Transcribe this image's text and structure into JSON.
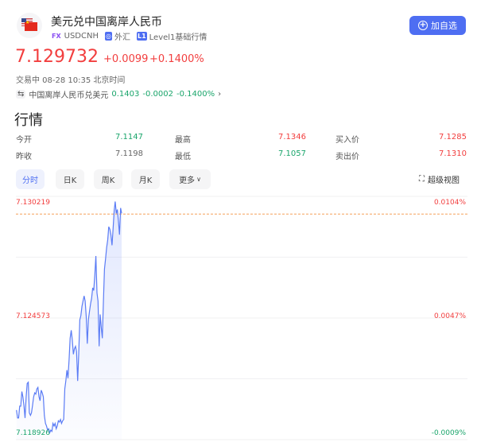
{
  "header": {
    "title": "美元兑中国离岸人民币",
    "symbol_badge": "FX",
    "symbol": "USDCNH",
    "market_icon": "globe-icon",
    "market": "外汇",
    "level_badge": "L1",
    "level": "Level1基础行情",
    "add_button": "加自选",
    "add_icon": "plus-circle-icon"
  },
  "quote": {
    "price": "7.129732",
    "change": "+0.0099",
    "change_pct": "+0.1400%",
    "status": "交易中 08-28 10:35 北京时间",
    "inverse_label": "中国离岸人民币兑美元",
    "inverse_price": "0.1403",
    "inverse_change": "-0.0002",
    "inverse_pct": "-0.1400%"
  },
  "market": {
    "heading": "行情",
    "rows": [
      [
        {
          "label": "今开",
          "value": "7.1147",
          "color": "green"
        },
        {
          "label": "最高",
          "value": "7.1346",
          "color": "red"
        },
        {
          "label": "买入价",
          "value": "7.1285",
          "color": "red"
        }
      ],
      [
        {
          "label": "昨收",
          "value": "7.1198",
          "color": "gray"
        },
        {
          "label": "最低",
          "value": "7.1057",
          "color": "green"
        },
        {
          "label": "卖出价",
          "value": "7.1310",
          "color": "red"
        }
      ]
    ]
  },
  "tabs": [
    {
      "label": "分时",
      "active": true
    },
    {
      "label": "日K"
    },
    {
      "label": "周K"
    },
    {
      "label": "月K"
    },
    {
      "label": "更多"
    }
  ],
  "super_view": "超级视图",
  "colors": {
    "up": "#f23e3e",
    "down": "#1aa56b",
    "accent": "#4e6ef2",
    "line": "#5b7cf5",
    "ref_line": "#f5a05a"
  },
  "chart_data": {
    "type": "line",
    "ylim": [
      7.118926,
      7.130219
    ],
    "y_ticks": [
      "7.130219",
      "7.124573",
      "7.118926"
    ],
    "pct_ticks": [
      "0.0104%",
      "0.0047%",
      "-0.0009%"
    ],
    "reference_line": 7.1294,
    "grid": true,
    "session_fraction_shown": 0.233,
    "values": [
      7.1203,
      7.11993,
      7.11993,
      7.12048,
      7.12048,
      7.12116,
      7.12091,
      7.12048,
      7.11993,
      7.12091,
      7.12153,
      7.12159,
      7.12017,
      7.12005,
      7.12017,
      7.12054,
      7.12091,
      7.1211,
      7.12104,
      7.12128,
      7.12135,
      7.12091,
      7.12073,
      7.12122,
      7.1211,
      7.12091,
      7.12005,
      7.11968,
      7.11956,
      7.11937,
      7.11943,
      7.11925,
      7.11937,
      7.11931,
      7.11968,
      7.11956,
      7.11968,
      7.11943,
      7.11956,
      7.1198,
      7.11974,
      7.11986,
      7.11968,
      7.1198,
      7.11986,
      7.12128,
      7.12165,
      7.12215,
      7.12178,
      7.12264,
      7.12363,
      7.124,
      7.12357,
      7.12289,
      7.12314,
      7.12326,
      7.12301,
      7.12165,
      7.12289,
      7.12449,
      7.12468,
      7.12511,
      7.12536,
      7.1256,
      7.12536,
      7.12462,
      7.12338,
      7.12449,
      7.12486,
      7.12523,
      7.12548,
      7.12597,
      7.12585,
      7.12659,
      7.12745,
      7.12573,
      7.12536,
      7.12326,
      7.12474,
      7.12412,
      7.12363,
      7.12536,
      7.12684,
      7.12733,
      7.12783,
      7.1282,
      7.12881,
      7.12869,
      7.12844,
      7.12795,
      7.12869,
      7.12955,
      7.12998,
      7.12943,
      7.12961,
      7.12906,
      7.12844,
      7.12968,
      7.12943
    ]
  }
}
